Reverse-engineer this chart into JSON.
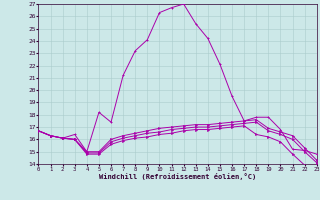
{
  "xlabel": "Windchill (Refroidissement éolien,°C)",
  "xlim": [
    0,
    23
  ],
  "ylim": [
    14,
    27
  ],
  "xticks": [
    0,
    1,
    2,
    3,
    4,
    5,
    6,
    7,
    8,
    9,
    10,
    11,
    12,
    13,
    14,
    15,
    16,
    17,
    18,
    19,
    20,
    21,
    22,
    23
  ],
  "yticks": [
    14,
    15,
    16,
    17,
    18,
    19,
    20,
    21,
    22,
    23,
    24,
    25,
    26,
    27
  ],
  "background_color": "#cce8e8",
  "grid_color": "#aacccc",
  "line_color": "#aa00aa",
  "curve1_x": [
    0,
    1,
    2,
    3,
    4,
    5,
    6,
    7,
    8,
    9,
    10,
    11,
    12,
    13,
    14,
    15,
    16,
    17,
    18,
    19,
    20,
    21,
    22,
    23
  ],
  "curve1_y": [
    16.7,
    16.3,
    16.1,
    16.4,
    15.0,
    18.2,
    17.4,
    21.2,
    23.2,
    24.1,
    26.3,
    26.7,
    27.0,
    25.4,
    24.2,
    22.1,
    19.5,
    17.5,
    17.8,
    17.8,
    16.8,
    15.2,
    15.1,
    14.8
  ],
  "curve2_x": [
    0,
    1,
    2,
    3,
    4,
    5,
    6,
    7,
    8,
    9,
    10,
    11,
    12,
    13,
    14,
    15,
    16,
    17,
    18,
    19,
    20,
    21,
    22,
    23
  ],
  "curve2_y": [
    16.7,
    16.3,
    16.1,
    16.0,
    15.0,
    15.0,
    16.0,
    16.3,
    16.5,
    16.7,
    16.9,
    17.0,
    17.1,
    17.2,
    17.2,
    17.3,
    17.4,
    17.5,
    17.6,
    16.9,
    16.6,
    16.3,
    15.3,
    14.3
  ],
  "curve3_x": [
    0,
    1,
    2,
    3,
    4,
    5,
    6,
    7,
    8,
    9,
    10,
    11,
    12,
    13,
    14,
    15,
    16,
    17,
    18,
    19,
    20,
    21,
    22,
    23
  ],
  "curve3_y": [
    16.7,
    16.3,
    16.1,
    16.0,
    14.9,
    14.9,
    15.8,
    16.1,
    16.3,
    16.5,
    16.6,
    16.8,
    16.9,
    17.0,
    17.0,
    17.1,
    17.2,
    17.3,
    17.4,
    16.7,
    16.4,
    16.0,
    15.0,
    14.1
  ],
  "curve4_x": [
    0,
    1,
    2,
    3,
    4,
    5,
    6,
    7,
    8,
    9,
    10,
    11,
    12,
    13,
    14,
    15,
    16,
    17,
    18,
    19,
    20,
    21,
    22,
    23
  ],
  "curve4_y": [
    16.7,
    16.3,
    16.1,
    16.0,
    14.8,
    14.8,
    15.6,
    15.9,
    16.1,
    16.2,
    16.4,
    16.5,
    16.7,
    16.8,
    16.8,
    16.9,
    17.0,
    17.1,
    16.4,
    16.2,
    15.8,
    14.8,
    13.9,
    13.8
  ]
}
